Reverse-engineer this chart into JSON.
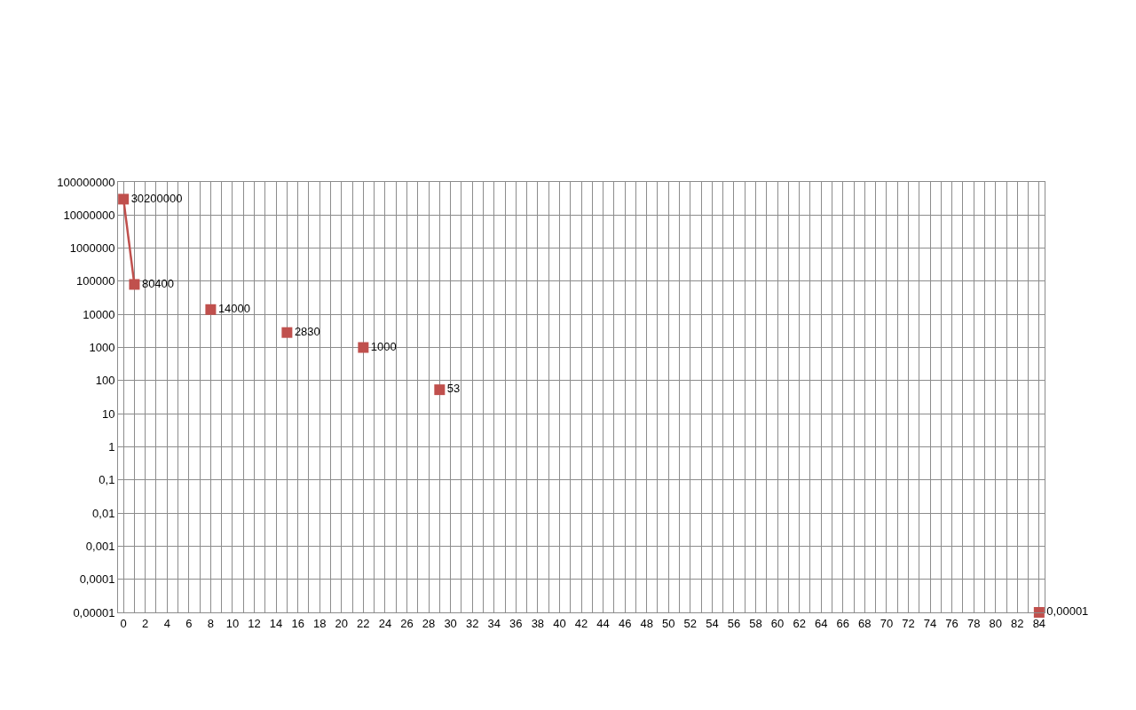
{
  "chart_data": {
    "type": "line",
    "x": [
      0,
      1,
      4,
      8,
      12,
      15,
      18,
      22,
      25,
      29,
      50,
      84
    ],
    "series": [
      {
        "color": "#c0504d",
        "values": [
          30200000,
          80400,
          null,
          14000,
          null,
          2830,
          null,
          1000,
          null,
          53,
          null,
          1e-05
        ],
        "value_labels": [
          "30200000",
          "80400",
          null,
          "14000",
          null,
          "2830",
          null,
          "1000",
          null,
          "53",
          null,
          "0,00001"
        ]
      }
    ],
    "log": "y",
    "marker": "square",
    "line_style": "solid",
    "grid": true,
    "xlim": [
      -0.5,
      84.5
    ],
    "xticks": [
      0,
      {
        "value": 1,
        "label": null
      },
      2,
      {
        "value": 3,
        "label": null
      },
      4,
      {
        "value": 5,
        "label": null
      },
      6,
      {
        "value": 7,
        "label": null
      },
      8,
      {
        "value": 9,
        "label": null
      },
      10,
      {
        "value": 11,
        "label": null
      },
      12,
      {
        "value": 13,
        "label": null
      },
      14,
      {
        "value": 15,
        "label": null
      },
      16,
      {
        "value": 17,
        "label": null
      },
      18,
      {
        "value": 19,
        "label": null
      },
      20,
      {
        "value": 21,
        "label": null
      },
      22,
      {
        "value": 23,
        "label": null
      },
      24,
      {
        "value": 25,
        "label": null
      },
      26,
      {
        "value": 27,
        "label": null
      },
      28,
      {
        "value": 29,
        "label": null
      },
      30,
      {
        "value": 31,
        "label": null
      },
      32,
      {
        "value": 33,
        "label": null
      },
      34,
      {
        "value": 35,
        "label": null
      },
      36,
      {
        "value": 37,
        "label": null
      },
      38,
      {
        "value": 39,
        "label": null
      },
      40,
      {
        "value": 41,
        "label": null
      },
      42,
      {
        "value": 43,
        "label": null
      },
      44,
      {
        "value": 45,
        "label": null
      },
      46,
      {
        "value": 47,
        "label": null
      },
      48,
      {
        "value": 49,
        "label": null
      },
      50,
      {
        "value": 51,
        "label": null
      },
      52,
      {
        "value": 53,
        "label": null
      },
      54,
      {
        "value": 55,
        "label": null
      },
      56,
      {
        "value": 57,
        "label": null
      },
      58,
      {
        "value": 59,
        "label": null
      },
      60,
      {
        "value": 61,
        "label": null
      },
      62,
      {
        "value": 63,
        "label": null
      },
      64,
      {
        "value": 65,
        "label": null
      },
      66,
      {
        "value": 67,
        "label": null
      },
      68,
      {
        "value": 69,
        "label": null
      },
      70,
      {
        "value": 71,
        "label": null
      },
      72,
      {
        "value": 73,
        "label": null
      },
      74,
      {
        "value": 75,
        "label": null
      },
      76,
      {
        "value": 77,
        "label": null
      },
      78,
      {
        "value": 79,
        "label": null
      },
      80,
      {
        "value": 81,
        "label": null
      },
      82,
      {
        "value": 83,
        "label": null
      },
      84
    ],
    "ylim": [
      1e-05,
      100000000
    ],
    "yticks": [
      {
        "value": 1e-05,
        "label": "0,00001"
      },
      {
        "value": 0.0001,
        "label": "0,0001"
      },
      {
        "value": 0.001,
        "label": "0,001"
      },
      {
        "value": 0.01,
        "label": "0,01"
      },
      {
        "value": 0.1,
        "label": "0,1"
      },
      1,
      10,
      100,
      1000,
      10000,
      100000,
      1000000,
      10000000,
      100000000
    ]
  }
}
